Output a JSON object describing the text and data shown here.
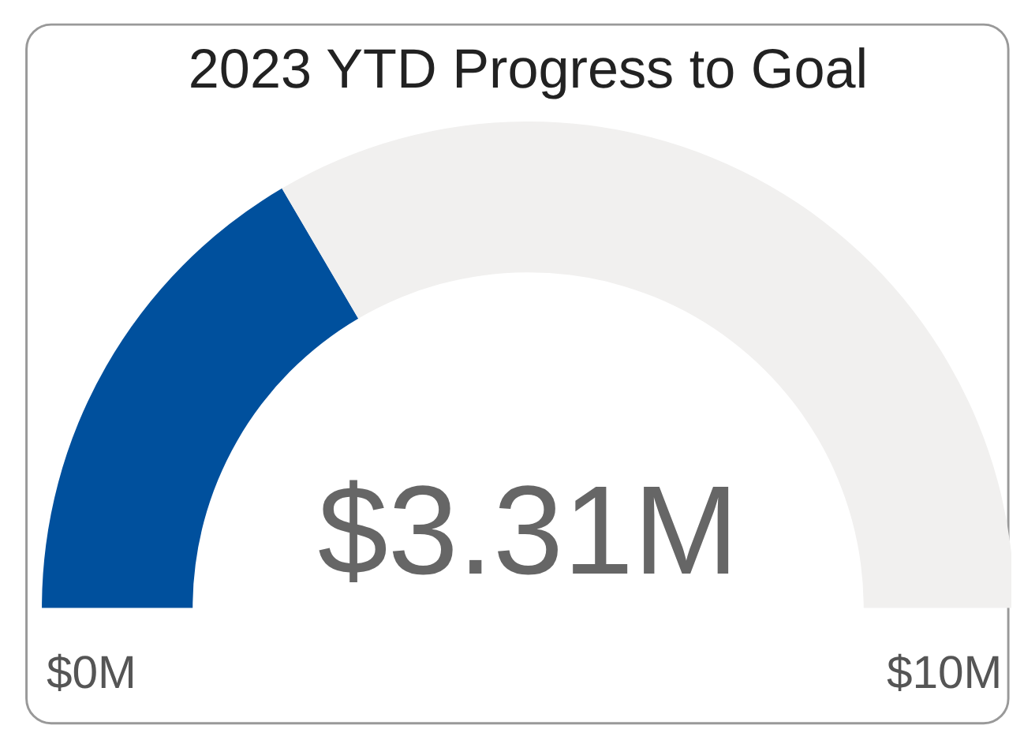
{
  "chart_data": {
    "type": "donut",
    "title": "2023 YTD Progress to Goal",
    "categories": [
      null,
      null
    ],
    "values": [
      33.1,
      66.9
    ],
    "colors": [
      "#00509d",
      "#f1f0ef"
    ],
    "annotations": [
      "$3.31M",
      "$0M",
      "$10M"
    ]
  }
}
